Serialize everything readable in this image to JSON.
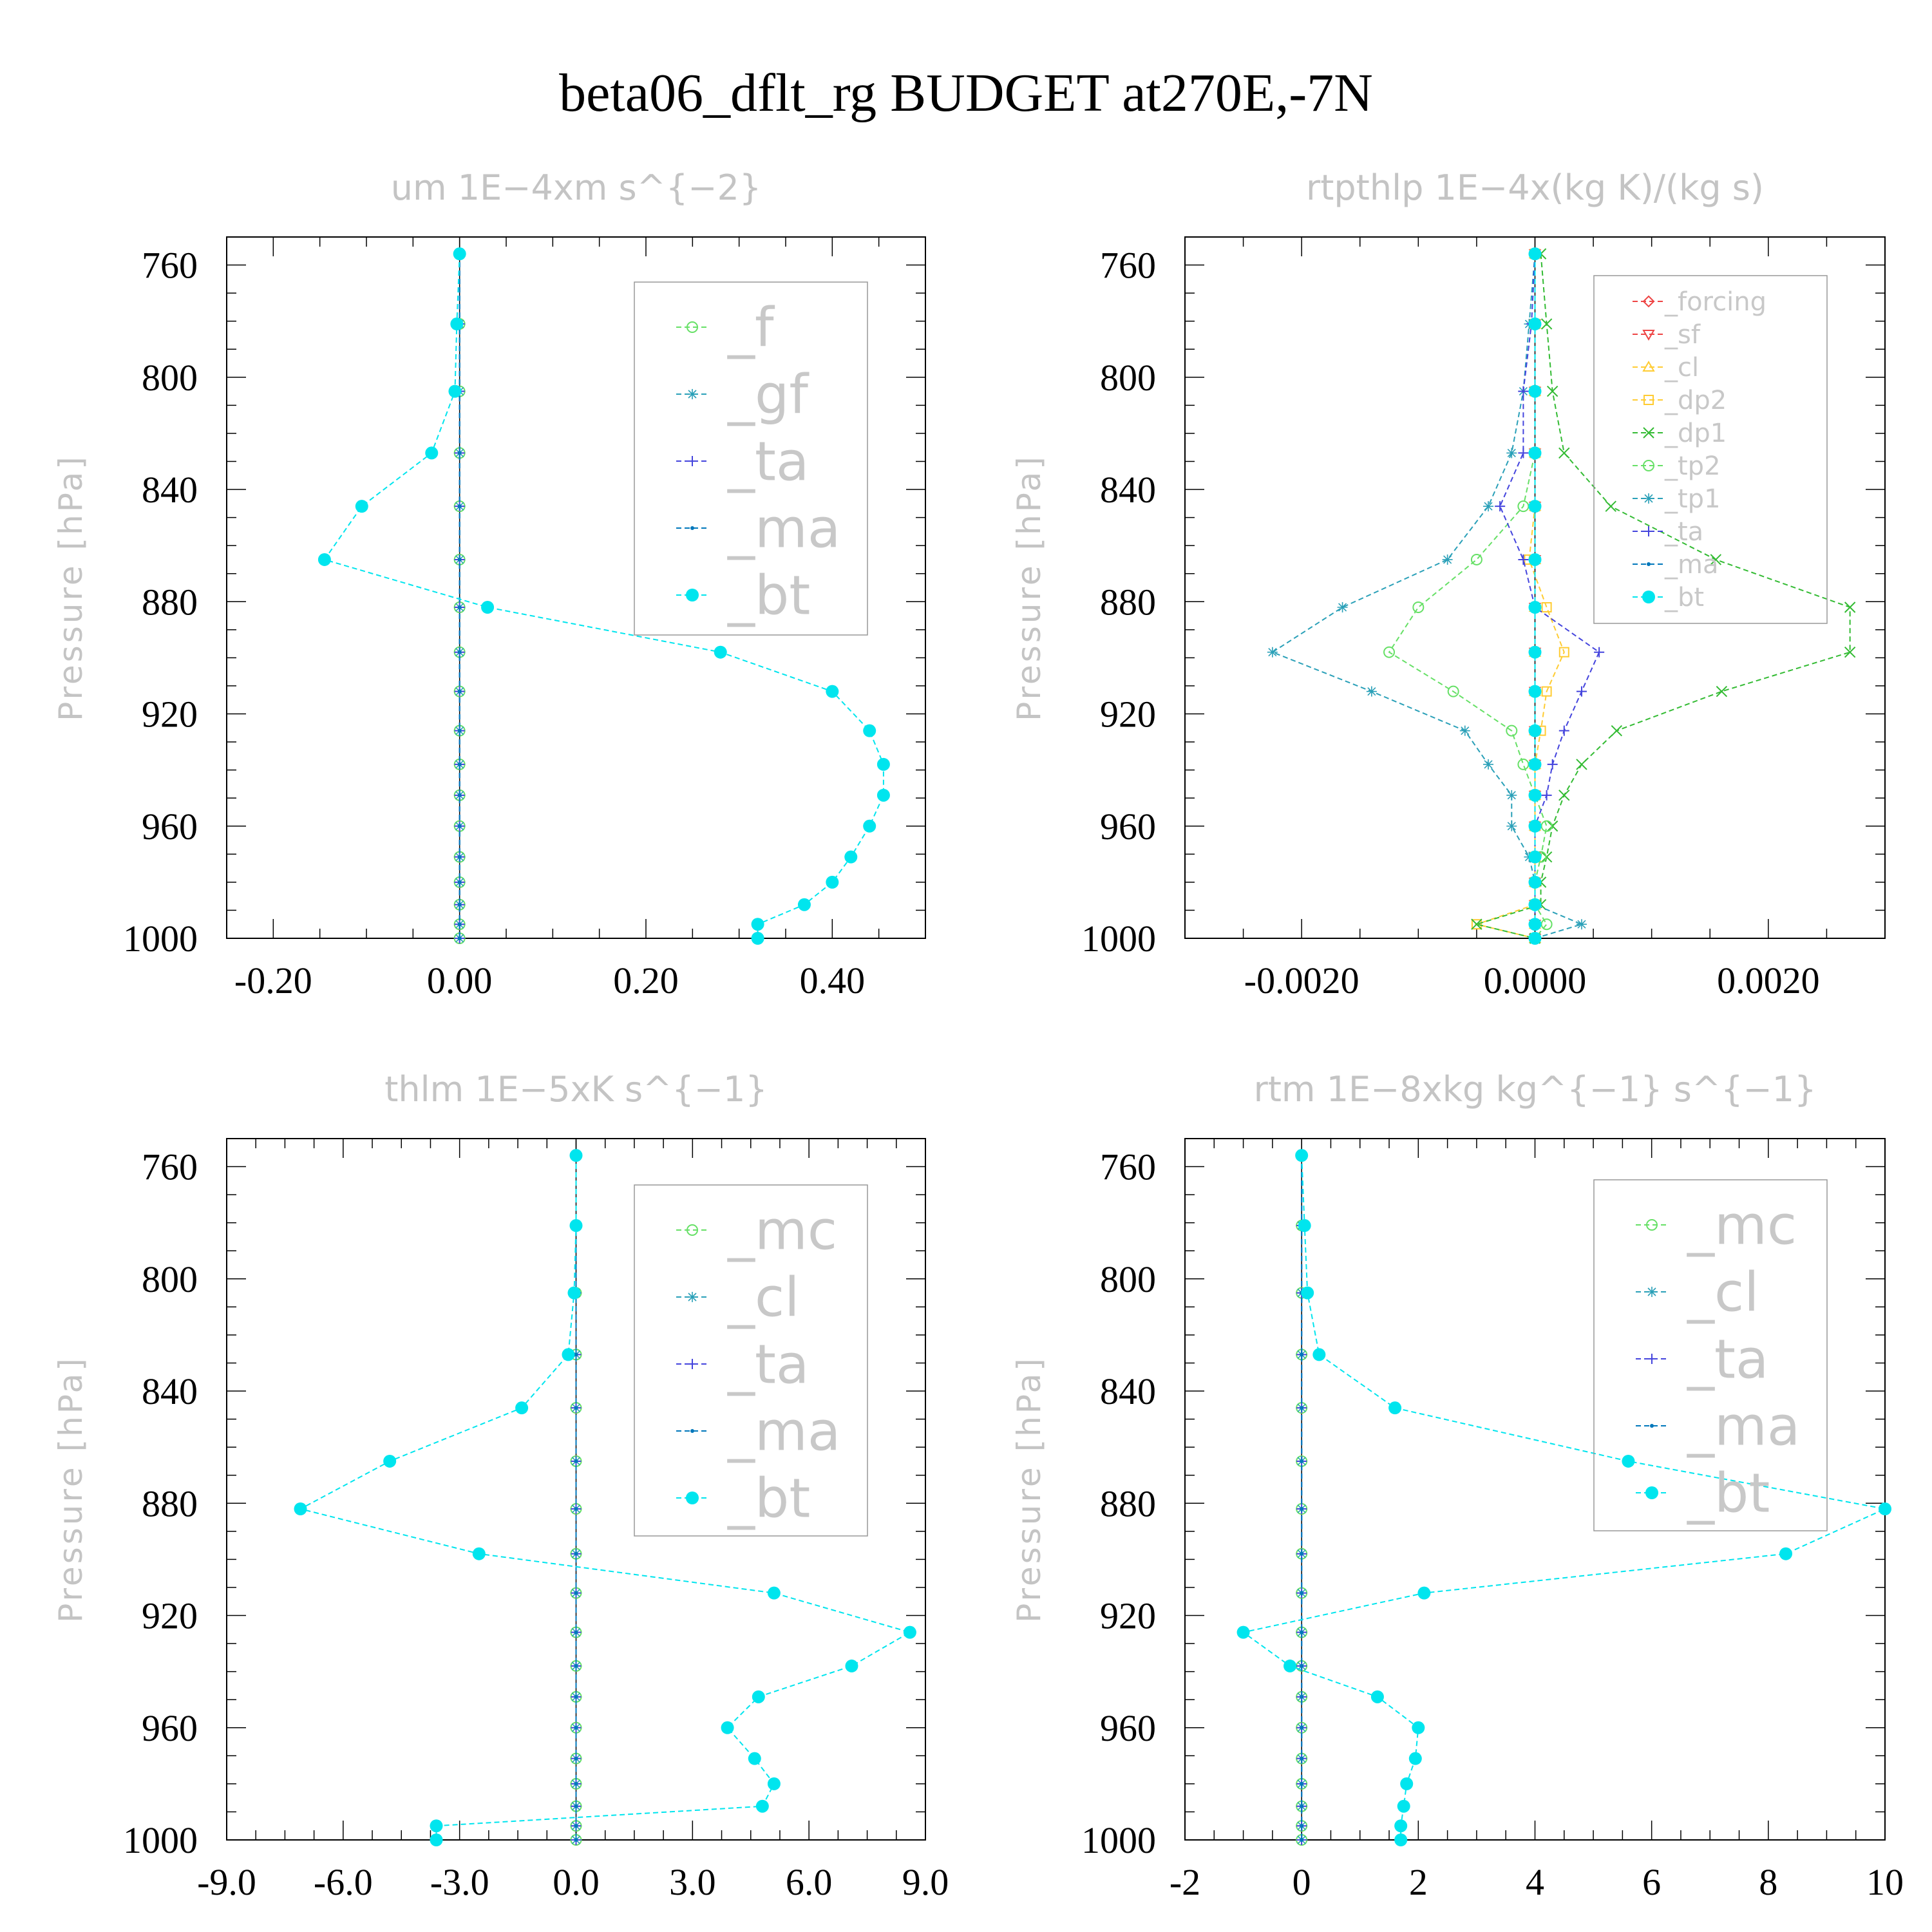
{
  "figure": {
    "title": "beta06_dflt_rg  BUDGET at270E,-7N"
  },
  "chart_data": [
    {
      "type": "line",
      "title": "um   1E−4xm s^{−2}",
      "ylabel": "Pressure [hPa]",
      "ylim": [
        1000,
        750
      ],
      "yticks": [
        "760",
        "800",
        "840",
        "880",
        "920",
        "960",
        "1000"
      ],
      "xlim": [
        -0.25,
        0.5
      ],
      "xticks": [
        "-0.20",
        "0.00",
        "0.20",
        "0.40"
      ],
      "xtick_values": [
        -0.2,
        0.0,
        0.2,
        0.4
      ],
      "legend": {
        "position": "top-right",
        "size": "large"
      },
      "levels": [
        756,
        781,
        805,
        827,
        846,
        865,
        882,
        898,
        912,
        926,
        938,
        949,
        960,
        971,
        980,
        988,
        995,
        1000
      ],
      "series": [
        {
          "name": "_f",
          "color": "#66e066",
          "marker": "circle-open",
          "values": [
            0,
            0,
            0,
            0,
            0,
            0,
            0,
            0,
            0,
            0,
            0,
            0,
            0,
            0,
            0,
            0,
            0,
            0
          ]
        },
        {
          "name": "_gf",
          "color": "#2aa0b8",
          "marker": "asterisk",
          "values": [
            0,
            0,
            0,
            0,
            0,
            0,
            0,
            0,
            0,
            0,
            0,
            0,
            0,
            0,
            0,
            0,
            0,
            0
          ]
        },
        {
          "name": "_ta",
          "color": "#4444dd",
          "marker": "plus",
          "values": [
            0,
            0,
            0,
            0,
            0,
            0,
            0,
            0,
            0,
            0,
            0,
            0,
            0,
            0,
            0,
            0,
            0,
            0
          ]
        },
        {
          "name": "_ma",
          "color": "#0077bb",
          "marker": "dot",
          "values": [
            0,
            0,
            0,
            0,
            0,
            0,
            0,
            0,
            0,
            0,
            0,
            0,
            0,
            0,
            0,
            0,
            0,
            0
          ]
        },
        {
          "name": "_bt",
          "color": "#00e5ee",
          "marker": "filled-circle",
          "values": [
            0.0,
            -0.003,
            -0.005,
            -0.03,
            -0.105,
            -0.145,
            0.03,
            0.28,
            0.4,
            0.44,
            0.455,
            0.455,
            0.44,
            0.42,
            0.4,
            0.37,
            0.32,
            0.32
          ]
        }
      ]
    },
    {
      "type": "line",
      "title": "rtpthlp   1E−4x(kg K)/(kg s)",
      "ylabel": "Pressure [hPa]",
      "ylim": [
        1000,
        750
      ],
      "yticks": [
        "760",
        "800",
        "840",
        "880",
        "920",
        "960",
        "1000"
      ],
      "xlim": [
        -0.003,
        0.003
      ],
      "xticks": [
        "-0.0020",
        "0.0000",
        "0.0020"
      ],
      "xtick_values": [
        -0.002,
        0.0,
        0.002
      ],
      "legend": {
        "position": "top-right",
        "size": "small"
      },
      "levels": [
        756,
        781,
        805,
        827,
        846,
        865,
        882,
        898,
        912,
        926,
        938,
        949,
        960,
        971,
        980,
        988,
        995,
        1000
      ],
      "series": [
        {
          "name": "_forcing",
          "color": "#ee4444",
          "marker": "diamond",
          "values": [
            0,
            0,
            0,
            0,
            0,
            0,
            0,
            0,
            0,
            0,
            0,
            0,
            0,
            0,
            0,
            0,
            0,
            0
          ]
        },
        {
          "name": "_sf",
          "color": "#ee4444",
          "marker": "triangle-down",
          "values": [
            0,
            0,
            0,
            0,
            0,
            0,
            0,
            0,
            0,
            0,
            0,
            0,
            0,
            0,
            0,
            0,
            0,
            0
          ]
        },
        {
          "name": "_cl",
          "color": "#ffcc33",
          "marker": "triangle-up",
          "values": [
            0,
            0,
            0,
            0,
            0,
            0,
            0,
            0,
            0,
            0,
            0,
            0,
            0,
            0,
            0,
            0,
            0,
            0
          ]
        },
        {
          "name": "_dp2",
          "color": "#ffcc33",
          "marker": "square",
          "values": [
            0,
            0,
            0,
            0,
            0,
            -5e-05,
            0.0001,
            0.00025,
            0.0001,
            5e-05,
            0,
            0,
            0,
            0,
            0,
            0,
            -0.0005,
            0
          ]
        },
        {
          "name": "_dp1",
          "color": "#33bb33",
          "marker": "x",
          "values": [
            5e-05,
            0.0001,
            0.00015,
            0.00025,
            0.00065,
            0.00155,
            0.0027,
            0.0027,
            0.0016,
            0.0007,
            0.0004,
            0.00025,
            0.00015,
            0.0001,
            5e-05,
            5e-05,
            -0.0005,
            0
          ]
        },
        {
          "name": "_tp2",
          "color": "#66e066",
          "marker": "circle-open",
          "values": [
            0,
            0,
            0,
            0,
            -0.0001,
            -0.0005,
            -0.001,
            -0.00125,
            -0.0007,
            -0.0002,
            -0.0001,
            0,
            0.0001,
            5e-05,
            0,
            0,
            0.0001,
            0
          ]
        },
        {
          "name": "_tp1",
          "color": "#2aa0b8",
          "marker": "asterisk",
          "values": [
            0,
            -5e-05,
            -0.0001,
            -0.0002,
            -0.0004,
            -0.00075,
            -0.00165,
            -0.00225,
            -0.0014,
            -0.0006,
            -0.0004,
            -0.0002,
            -0.0002,
            -5e-05,
            0,
            0,
            0.0004,
            0
          ]
        },
        {
          "name": "_ta",
          "color": "#4444dd",
          "marker": "plus",
          "values": [
            0,
            -3e-05,
            -0.0001,
            -0.0001,
            -0.0003,
            -0.0001,
            0,
            0.00055,
            0.0004,
            0.00025,
            0.00015,
            0.0001,
            0,
            0,
            0,
            0,
            0,
            0
          ]
        },
        {
          "name": "_ma",
          "color": "#0077bb",
          "marker": "dot",
          "values": [
            0,
            0,
            0,
            0,
            0,
            0,
            0,
            0,
            0,
            0,
            0,
            0,
            0,
            0,
            0,
            0,
            0,
            0
          ]
        },
        {
          "name": "_bt",
          "color": "#00e5ee",
          "marker": "filled-circle",
          "values": [
            0,
            0,
            0,
            0,
            0,
            0,
            0,
            0,
            0,
            0,
            0,
            0,
            0,
            0,
            0,
            0,
            0,
            0
          ]
        }
      ]
    },
    {
      "type": "line",
      "title": "thlm   1E−5xK s^{−1}",
      "ylabel": "Pressure [hPa]",
      "ylim": [
        1000,
        750
      ],
      "yticks": [
        "760",
        "800",
        "840",
        "880",
        "920",
        "960",
        "1000"
      ],
      "xlim": [
        -9.0,
        9.0
      ],
      "xticks": [
        "-9.0",
        "-6.0",
        "-3.0",
        "0.0",
        "3.0",
        "6.0",
        "9.0"
      ],
      "xtick_values": [
        -9,
        -6,
        -3,
        0,
        3,
        6,
        9
      ],
      "legend": {
        "position": "top-right",
        "size": "large"
      },
      "levels": [
        756,
        781,
        805,
        827,
        846,
        865,
        882,
        898,
        912,
        926,
        938,
        949,
        960,
        971,
        980,
        988,
        995,
        1000
      ],
      "series": [
        {
          "name": "_mc",
          "color": "#66e066",
          "marker": "circle-open",
          "values": [
            0,
            0,
            0,
            0,
            0,
            0,
            0,
            0,
            0,
            0,
            0,
            0,
            0,
            0,
            0,
            0,
            0,
            0
          ]
        },
        {
          "name": "_cl",
          "color": "#2aa0b8",
          "marker": "asterisk",
          "values": [
            0,
            0,
            0,
            0,
            0,
            0,
            0,
            0,
            0,
            0,
            0,
            0,
            0,
            0,
            0,
            0,
            0,
            0
          ]
        },
        {
          "name": "_ta",
          "color": "#4444dd",
          "marker": "plus",
          "values": [
            0,
            0,
            0,
            0,
            0,
            0,
            0,
            0,
            0,
            0,
            0,
            0,
            0,
            0,
            0,
            0,
            0,
            0
          ]
        },
        {
          "name": "_ma",
          "color": "#0077bb",
          "marker": "dot",
          "values": [
            0,
            0,
            0,
            0,
            0,
            0,
            0,
            0,
            0,
            0,
            0,
            0,
            0,
            0,
            0,
            0,
            0,
            0
          ]
        },
        {
          "name": "_bt",
          "color": "#00e5ee",
          "marker": "filled-circle",
          "values": [
            0,
            0,
            -0.05,
            -0.2,
            -1.4,
            -4.8,
            -7.1,
            -2.5,
            5.1,
            8.6,
            7.1,
            4.7,
            3.9,
            4.6,
            5.1,
            4.8,
            -3.6,
            -3.6
          ]
        }
      ]
    },
    {
      "type": "line",
      "title": "rtm   1E−8xkg kg^{−1} s^{−1}",
      "ylabel": "Pressure [hPa]",
      "ylim": [
        1000,
        750
      ],
      "yticks": [
        "760",
        "800",
        "840",
        "880",
        "920",
        "960",
        "1000"
      ],
      "xlim": [
        -2,
        10
      ],
      "xticks": [
        "-2",
        "0",
        "2",
        "4",
        "6",
        "8",
        "10"
      ],
      "xtick_values": [
        -2,
        0,
        2,
        4,
        6,
        8,
        10
      ],
      "legend": {
        "position": "top-right",
        "size": "large"
      },
      "levels": [
        756,
        781,
        805,
        827,
        846,
        865,
        882,
        898,
        912,
        926,
        938,
        949,
        960,
        971,
        980,
        988,
        995,
        1000
      ],
      "series": [
        {
          "name": "_mc",
          "color": "#66e066",
          "marker": "circle-open",
          "values": [
            0,
            0,
            0,
            0,
            0,
            0,
            0,
            0,
            0,
            0,
            0,
            0,
            0,
            0,
            0,
            0,
            0,
            0
          ]
        },
        {
          "name": "_cl",
          "color": "#2aa0b8",
          "marker": "asterisk",
          "values": [
            0,
            0,
            0,
            0,
            0,
            0,
            0,
            0,
            0,
            0,
            0,
            0,
            0,
            0,
            0,
            0,
            0,
            0
          ]
        },
        {
          "name": "_ta",
          "color": "#4444dd",
          "marker": "plus",
          "values": [
            0,
            0,
            0,
            0,
            0,
            0,
            0,
            0,
            0,
            0,
            0,
            0,
            0,
            0,
            0,
            0,
            0,
            0
          ]
        },
        {
          "name": "_ma",
          "color": "#0077bb",
          "marker": "dot",
          "values": [
            0,
            0,
            0,
            0,
            0,
            0,
            0,
            0,
            0,
            0,
            0,
            0,
            0,
            0,
            0,
            0,
            0,
            0
          ]
        },
        {
          "name": "_bt",
          "color": "#00e5ee",
          "marker": "filled-circle",
          "values": [
            0,
            0.05,
            0.1,
            0.3,
            1.6,
            5.6,
            10.0,
            8.3,
            2.1,
            -1.0,
            -0.2,
            1.3,
            2.0,
            1.95,
            1.8,
            1.75,
            1.7,
            1.7
          ]
        }
      ]
    }
  ]
}
